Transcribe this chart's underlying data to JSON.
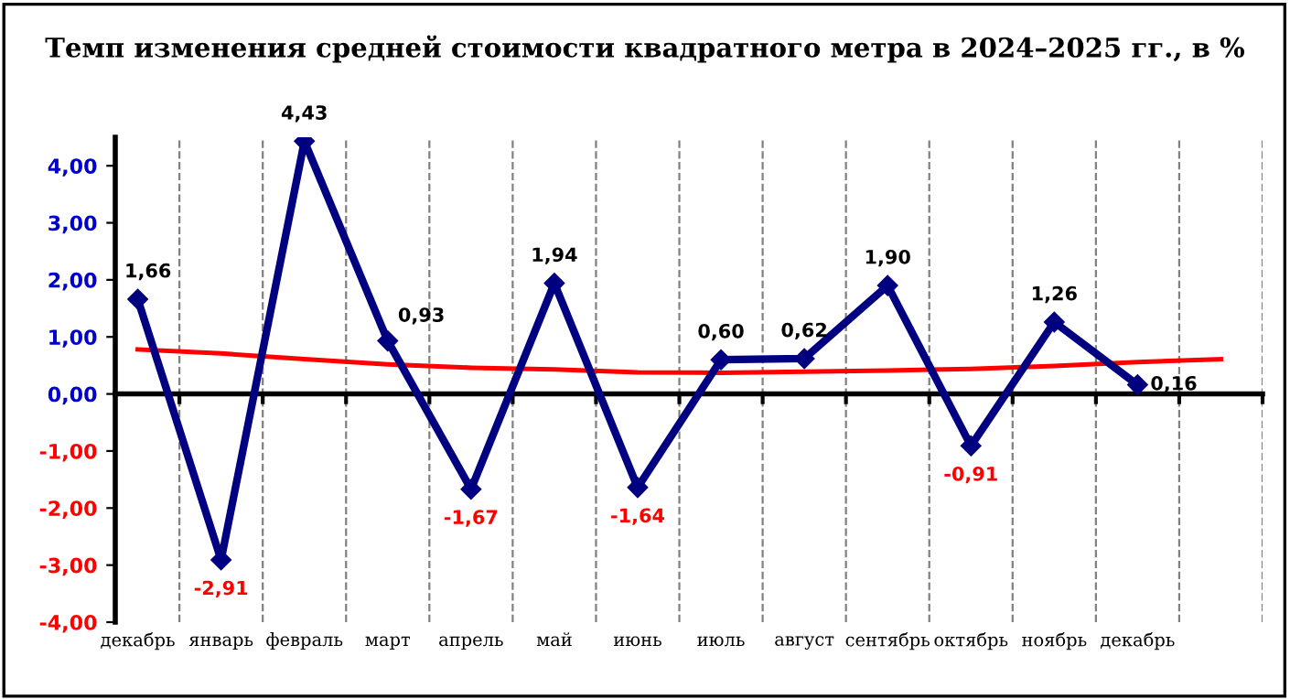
{
  "chart_data": {
    "type": "line",
    "title": "Темп изменения средней стоимости квадратного метра в 2024–2025 гг., в %",
    "categories": [
      "декабрь",
      "январь",
      "февраль",
      "март",
      "апрель",
      "май",
      "июнь",
      "июль",
      "август",
      "сентябрь",
      "октябрь",
      "ноябрь",
      "декабрь",
      null
    ],
    "series": [
      {
        "color": "#000080",
        "values": [
          1.66,
          -2.91,
          4.43,
          0.93,
          -1.67,
          1.94,
          -1.64,
          0.6,
          0.62,
          1.9,
          -0.91,
          1.26,
          0.16,
          null
        ],
        "value_labels": [
          "1,66",
          "-2,91",
          "4,43",
          "0,93",
          "-1,67",
          "1,94",
          "-1,64",
          "0,60",
          "0,62",
          "1,90",
          "-0,91",
          "1,26",
          "0,16",
          null
        ],
        "marker": "diamond"
      },
      {
        "color": "#ff0000",
        "values": [
          0.78,
          0.71,
          0.61,
          0.52,
          0.46,
          0.43,
          0.38,
          0.37,
          0.39,
          0.41,
          0.44,
          0.49,
          0.56,
          0.61
        ],
        "marker": "none"
      }
    ],
    "ylim": [
      -4,
      4.5
    ],
    "yticks": [
      {
        "value": -4,
        "label": "-4,00"
      },
      {
        "value": -3,
        "label": "-3,00"
      },
      {
        "value": -2,
        "label": "-2,00"
      },
      {
        "value": -1,
        "label": "-1,00"
      },
      {
        "value": 0,
        "label": "0,00"
      },
      {
        "value": 1,
        "label": "1,00"
      },
      {
        "value": 2,
        "label": "2,00"
      },
      {
        "value": 3,
        "label": "3,00"
      },
      {
        "value": 4,
        "label": "4,00"
      }
    ],
    "grid": "x",
    "legend": false,
    "line_style": "solid"
  }
}
